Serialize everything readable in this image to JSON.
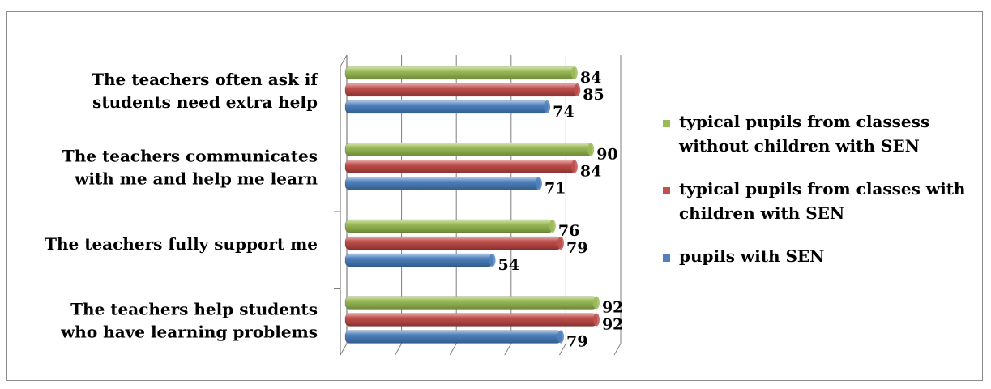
{
  "chart_data": {
    "type": "bar",
    "orientation": "horizontal",
    "categories": [
      [
        "The teachers often ask if",
        "students need extra help"
      ],
      [
        "The teachers communicates",
        "with me and help me learn"
      ],
      [
        "The teachers fully support  me"
      ],
      [
        "The teachers help students",
        "who have learning problems"
      ]
    ],
    "series": [
      {
        "name_lines": [
          "typical pupils from classess",
          "without children with SEN"
        ],
        "color": "#9bbb59",
        "values": [
          84,
          90,
          76,
          92
        ]
      },
      {
        "name_lines": [
          "typical pupils from classes with",
          "children with SEN"
        ],
        "color": "#c0504d",
        "values": [
          85,
          84,
          79,
          92
        ]
      },
      {
        "name_lines": [
          "pupils with  SEN"
        ],
        "color": "#4f81bd",
        "values": [
          74,
          71,
          54,
          79
        ]
      }
    ],
    "xlim": [
      0,
      100
    ],
    "grid": true,
    "legend": "right",
    "title": "",
    "xlabel": "",
    "ylabel": ""
  }
}
